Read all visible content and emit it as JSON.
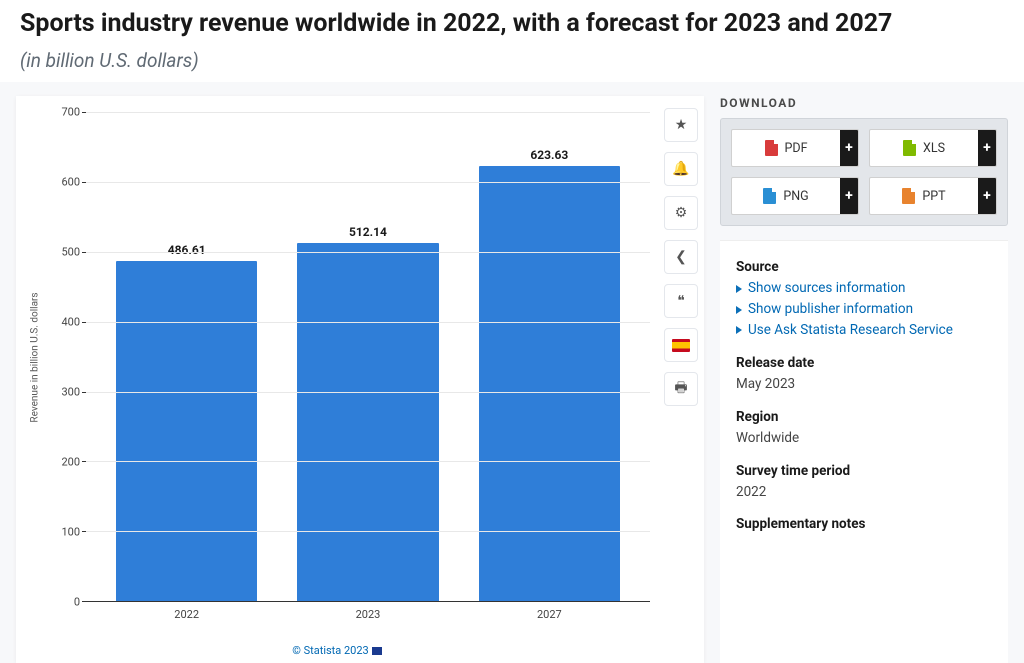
{
  "header": {
    "title": "Sports industry revenue worldwide in 2022, with a forecast for 2023 and 2027",
    "subtitle": "(in billion U.S. dollars)"
  },
  "chart": {
    "type": "bar",
    "ylabel": "Revenue in billion U.S. dollars",
    "ylim": [
      0,
      700
    ],
    "ytick_step": 100,
    "yticks": [
      0,
      100,
      200,
      300,
      400,
      500,
      600,
      700
    ],
    "categories": [
      "2022",
      "2023",
      "2027"
    ],
    "values": [
      486.61,
      512.14,
      623.63
    ],
    "bar_color": "#2f7ed8",
    "grid_color": "#e8e8e8",
    "axis_color": "#333333",
    "label_fontsize": 11,
    "value_fontsize": 12,
    "bar_width_pct": 78,
    "background_color": "#ffffff",
    "copyright": "© Statista 2023"
  },
  "toolbar": {
    "items": [
      {
        "name": "star",
        "glyph": "★"
      },
      {
        "name": "bell",
        "glyph": "🔔"
      },
      {
        "name": "settings",
        "glyph": "⚙"
      },
      {
        "name": "share",
        "glyph": "❮"
      },
      {
        "name": "quote",
        "glyph": "❝"
      },
      {
        "name": "language-es",
        "glyph": "flag"
      },
      {
        "name": "print",
        "glyph": "🖶"
      }
    ]
  },
  "download": {
    "title": "DOWNLOAD",
    "options": [
      {
        "label": "PDF",
        "color": "#d83b3b"
      },
      {
        "label": "XLS",
        "color": "#7fba00"
      },
      {
        "label": "PNG",
        "color": "#2a8fd4"
      },
      {
        "label": "PPT",
        "color": "#e8832e"
      }
    ],
    "plus": "+"
  },
  "meta": {
    "source": {
      "heading": "Source",
      "links": [
        "Show sources information",
        "Show publisher information",
        "Use Ask Statista Research Service"
      ]
    },
    "release_date": {
      "heading": "Release date",
      "value": "May 2023"
    },
    "region": {
      "heading": "Region",
      "value": "Worldwide"
    },
    "survey_period": {
      "heading": "Survey time period",
      "value": "2022"
    },
    "supplementary": {
      "heading": "Supplementary notes"
    }
  }
}
